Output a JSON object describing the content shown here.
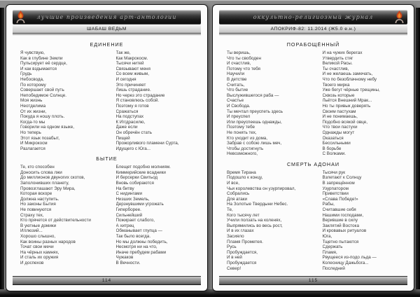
{
  "colors": {
    "backdrop": "#8f8f8f",
    "page": "#fcfcfc",
    "banner_dark": "#141414",
    "flame_accent": "#e0561e"
  },
  "icons": {
    "logo": "flame-logo"
  },
  "pages": [
    {
      "banner": "лучшие произведения арт-антологии",
      "rubric": "ШАБАШ ВЕДЬМ",
      "page_number": "114",
      "sections": [
        {
          "title": "ЕДИНЕНИЕ",
          "col1": [
            "Я чувствую,",
            "Как в глубине Земли",
            "Пульсирует её сердце,",
            "И как вздымается",
            "Грудь",
            "Небосвода,",
            "По которому",
            "Совершает свой путь",
            "Непобедимое Солнце.",
            "Моя жизнь",
            "Неотделима",
            "От их жизни,",
            "Покуда я ношу плоть.",
            "Когда-то мы",
            "Говорили на одном языке,",
            "Но теперь",
            "Этот язык позабыт,",
            "И Микрокосм",
            "Разлагается"
          ],
          "col2": [
            "Так же,",
            "Как Макрокосм.",
            "Тысячи нитей",
            "Связывают меня",
            "Со всем живым,",
            "И сегодня",
            "Это причиняет",
            "Лишь страдание.",
            "Но через это страдание",
            "Я становлюсь собой.",
            "Поэтому я готов",
            "Сражаться",
            "На подступах",
            "К Иггдрасилю,",
            "Даже если",
            "Он обречён стать",
            "Пищей",
            "Прожорливого пламени Сурта,",
            "Идущего с Юга..."
          ]
        },
        {
          "title": "БЫТИЕ",
          "col1": [
            "Те, кто способен",
            "Доносить слова лжи",
            "До миллионов двуногих скотов,",
            "Заполонивших планету,",
            "Провозглашают Эру Мира,",
            "Которая вскоре",
            "Должна наступить.",
            "Но законы Бытия",
            "Не повинуются",
            "Страху тех,",
            "Кто прячется от действительности",
            "В уютные домики",
            "Иллюзий...",
            "Хорошо слышно,",
            "Как воины разных народов",
            "Точат свои мечи",
            "На чёрных камнях,",
            "И сталь их оружия",
            "И доспехов"
          ],
          "col2": [
            "Блещет подобно молниям.",
            "Киммерийские всадники",
            "И берсерки Свитьод",
            "Вновь собираются",
            "На битву",
            "С нидингами",
            "Низших Земель,",
            "Дерзнувшими угрожать",
            "Гиперборее.",
            "Сильнейший",
            "Пожирает слабого,",
            "А хитрец",
            "Обманывает глупца —",
            "Так было всегда.",
            "Но мы должны победить,",
            "Несмотря ни на что,",
            "Иначе пребудем рабами",
            "Чужаков",
            "В Вечности."
          ]
        }
      ]
    },
    {
      "banner": "оккультно-религиозный журнал",
      "rubric": "АПОКРИФ-82: 11.2014 (Ж5.0 е.н.)",
      "page_number": "115",
      "sections": [
        {
          "title": "ПОРАБОЩЁННЫЙ",
          "col1": [
            "Ты веришь,",
            "Что ты свободен",
            "И счастлив,",
            "Потому что тебя",
            "Научили",
            "В детстве",
            "Считать,",
            "Что бытие",
            "Выслужившегося раба —",
            "Счастье",
            "И Свобода.",
            "Ты мечтал преуспеть здесь",
            "И преуспел",
            "Или преуспеешь однажды,",
            "Поэтому тебе",
            "Не понять тех,",
            "Кто уходит из дома,",
            "Забрав с собою лишь меч,",
            "Чтобы достигнуть",
            "Невозможного,"
          ],
          "col2": [
            "И на чужих берегах",
            "Утвердить стяг",
            "Великой Расы.",
            "Ты счастлив,",
            "И не желаешь замечать,",
            "Что по безоблачному небу",
            "Твоего мирка",
            "Уже бегут чёрные трещины,",
            "Сквозь которые",
            "Льётся Внешний Мрак...",
            "Но ты привык доверять",
            "Своим пастухам",
            "И не понимаешь,",
            "Подобно всякой овце,",
            "Что твои пастухи",
            "Однажды могут",
            "Оказаться",
            "Бессильными",
            "В борьбе",
            "С Волками."
          ]
        },
        {
          "title": "СМЕРТЬ АДОНАИ",
          "col1": [
            "Время Тирана",
            "Подошло к концу,",
            "И все,",
            "Чьи королевства он узурпировал,",
            "Собрались",
            "Для атаки",
            "На Золотые Твердыни Небес.",
            "Те,",
            "Кого тысячу лет",
            "Учили ползать на коленях,",
            "Выпрямились во весь рост,",
            "И в их глазах",
            "Засияло",
            "Пламя Прометея.",
            "Русь",
            "Пробуждается,",
            "И в ней",
            "Пробуждается",
            "Север!"
          ],
          "col2": [
            "Тысячи рук",
            "Взлетают к Солнцу",
            "В запрещённом",
            "Узурпатором",
            "Приветствии",
            "«Слава Победе!»",
            "Рабы,",
            "Считавшие себя",
            "Нашими господами,",
            "Верившие в силу",
            "Заклятий Востока",
            "И кровавых ритуалов",
            "Юга,",
            "Тщетно пытаются",
            "Сдержать",
            "Пламя,",
            "Рвущееся из-подо льда —",
            "Колесницу Дажьбога...",
            "Последний"
          ]
        }
      ]
    }
  ]
}
